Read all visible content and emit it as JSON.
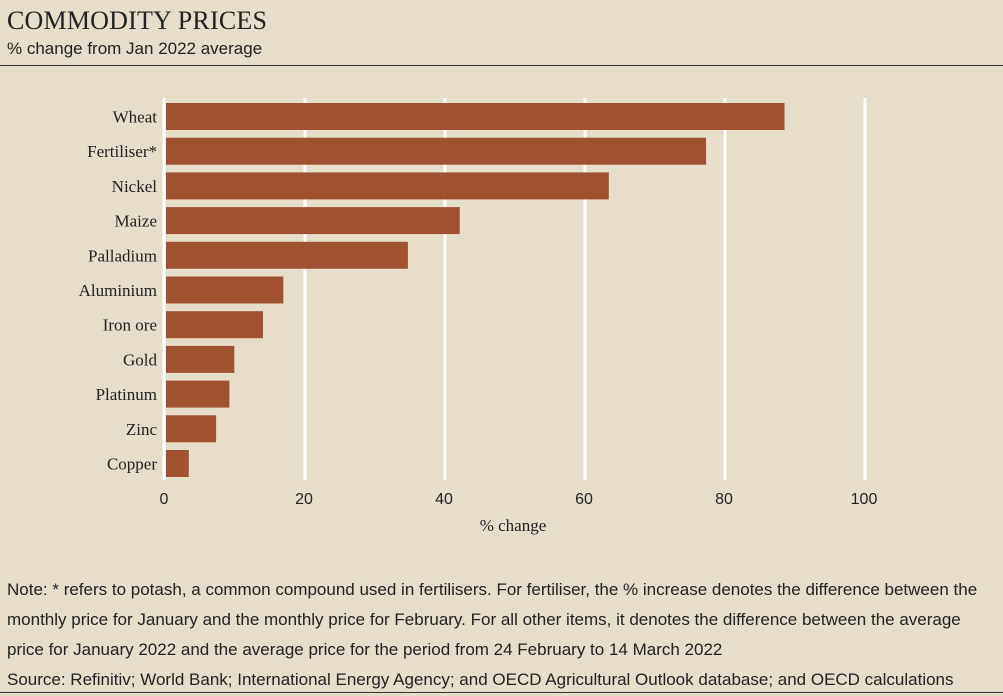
{
  "header": {
    "title": "COMMODITY PRICES",
    "subtitle": "% change from Jan 2022 average"
  },
  "colors": {
    "bar": "#a0512f",
    "grid": "#ffffff",
    "background": "#e6ddcb"
  },
  "chart_data": {
    "type": "bar",
    "orientation": "horizontal",
    "categories": [
      "Wheat",
      "Fertiliser*",
      "Nickel",
      "Maize",
      "Palladium",
      "Aluminium",
      "Iron ore",
      "Gold",
      "Platinum",
      "Zinc",
      "Copper"
    ],
    "values": [
      88.5,
      77.3,
      63.4,
      42.1,
      34.7,
      16.9,
      14.0,
      9.9,
      9.2,
      7.3,
      3.4
    ],
    "xlabel": "% change",
    "ylabel": "",
    "xlim": [
      0,
      100
    ],
    "xticks": [
      "0",
      "20",
      "40",
      "60",
      "80",
      "100"
    ],
    "grid": true
  },
  "footer": {
    "note": "Note: * refers to potash, a common compound used in fertilisers. For fertiliser, the % increase denotes the difference between the monthly price for January and the monthly price for February. For all other items, it denotes the difference between the average price for January 2022 and the average price for the period from 24 February to 14 March 2022",
    "source": "Source: Refinitiv; World Bank; International Energy Agency; and OECD Agricultural Outlook database; and OECD calculations"
  }
}
